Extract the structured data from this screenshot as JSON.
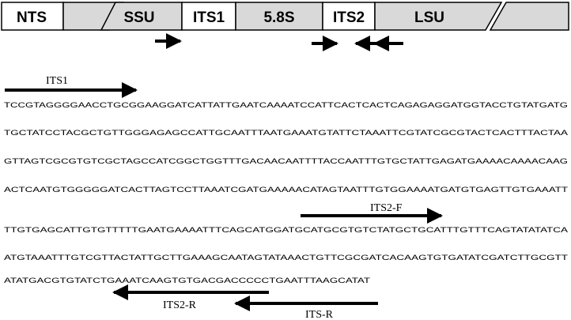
{
  "regions": [
    {
      "label": "NTS",
      "fill": "#ffffff"
    },
    {
      "label": "SSU",
      "fill": "#d9d9d9"
    },
    {
      "label": "ITS1",
      "fill": "#ffffff"
    },
    {
      "label": "5.8S",
      "fill": "#d9d9d9"
    },
    {
      "label": "ITS2",
      "fill": "#ffffff"
    },
    {
      "label": "LSU",
      "fill": "#d9d9d9"
    }
  ],
  "primer_labels": {
    "its1": "ITS1",
    "its2f": "ITS2-F",
    "its2r": "ITS2-R",
    "itsr": "ITS-R"
  },
  "sequence": [
    "TCCGTAGGGGAACCTGCGGAAGGATCATTATTGAATCAAAATCCATTCACTCACTCAGAGAGGATGGTACCTGTATGATG",
    "TGCTATCCTACGCTGTTGGGAGAGCCATTGCAATTTAATGAAATGTATTCTAAATTCGTATCGCGTACTCACTTTACTAA",
    "GTTAGTCGCGTGTCGCTAGCCATCGGCTGGTTTGACAACAATTTTACCAATTTGTGCTATTGAGATGAAAACAAAACAAG",
    "ACTCAATGTGGGGGATCACTTAGTCCTTAAATCGATGAAAAACATAGTAATTTGTGGAAAATGATGTGAGTTGTGAAATT",
    "TTGTGAGCATTGTGTTTTTGAATGAAAATTTCAGCATGGATGCATGCGTGTCTATGCTGCATTTGTTTCAGTATATATCA",
    "ATGTAAATTTGTCGTTACTATTGCTTGAAAGCAATAGTATAAACTGTTCGCGATCACAAGTGTGATATCGATCTTGCGTT",
    "ATATGACGTGTATCTGAAATCAAGTGTGACGACCCCCTGAATTTAAGCATAT"
  ],
  "colors": {
    "stroke": "#000000",
    "text": "#000000"
  }
}
